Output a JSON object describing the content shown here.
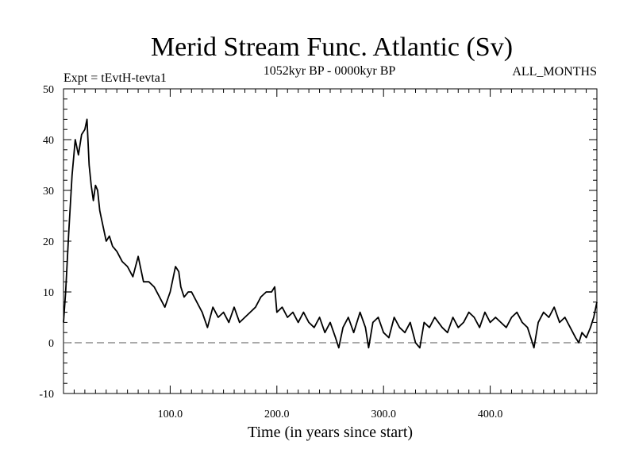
{
  "chart_data": {
    "type": "line",
    "title": "Merid Stream Func. Atlantic (Sv)",
    "subtitle_left": "Expt = tEvtH-tevta1",
    "subtitle_center": "1052kyr BP - 0000kyr BP",
    "subtitle_right": "ALL_MONTHS",
    "xlabel": "Time (in years since start)",
    "ylabel": "",
    "xlim": [
      0,
      500
    ],
    "ylim": [
      -10,
      50
    ],
    "x_ticks": [
      100,
      200,
      300,
      400
    ],
    "x_tick_labels": [
      "100.0",
      "200.0",
      "300.0",
      "400.0"
    ],
    "y_ticks": [
      -10,
      0,
      10,
      20,
      30,
      40,
      50
    ],
    "y_tick_labels": [
      "-10",
      "0",
      "10",
      "20",
      "30",
      "40",
      "50"
    ],
    "reference_line": {
      "y": 0,
      "style": "dashed"
    },
    "series": [
      {
        "name": "Merid Stream Func. Atlantic",
        "x": [
          0,
          2,
          5,
          8,
          11,
          14,
          17,
          20,
          22,
          24,
          26,
          28,
          30,
          32,
          34,
          36,
          38,
          40,
          43,
          46,
          50,
          55,
          60,
          65,
          70,
          75,
          80,
          85,
          90,
          95,
          100,
          105,
          108,
          110,
          113,
          117,
          120,
          125,
          130,
          135,
          140,
          145,
          150,
          155,
          160,
          165,
          170,
          175,
          180,
          185,
          190,
          195,
          198,
          200,
          205,
          210,
          215,
          220,
          225,
          230,
          235,
          240,
          245,
          250,
          255,
          258,
          262,
          267,
          272,
          278,
          283,
          286,
          290,
          295,
          300,
          305,
          310,
          315,
          320,
          325,
          330,
          334,
          338,
          343,
          348,
          355,
          360,
          365,
          370,
          375,
          380,
          385,
          390,
          395,
          400,
          405,
          410,
          415,
          420,
          425,
          430,
          435,
          438,
          441,
          445,
          450,
          455,
          460,
          465,
          470,
          475,
          480,
          483,
          486,
          490,
          494,
          497,
          500
        ],
        "values": [
          4,
          10,
          22,
          33,
          40,
          37,
          41,
          42,
          44,
          35,
          31,
          28,
          31,
          30,
          26,
          24,
          22,
          20,
          21,
          19,
          18,
          16,
          15,
          13,
          17,
          12,
          12,
          11,
          9,
          7,
          10,
          15,
          14,
          11,
          9,
          10,
          10,
          8,
          6,
          3,
          7,
          5,
          6,
          4,
          7,
          4,
          5,
          6,
          7,
          9,
          10,
          10,
          11,
          6,
          7,
          5,
          6,
          4,
          6,
          4,
          3,
          5,
          2,
          4,
          1,
          -1,
          3,
          5,
          2,
          6,
          3,
          -1,
          4,
          5,
          2,
          1,
          5,
          3,
          2,
          4,
          0,
          -1,
          4,
          3,
          5,
          3,
          2,
          5,
          3,
          4,
          6,
          5,
          3,
          6,
          4,
          5,
          4,
          3,
          5,
          6,
          4,
          3,
          1,
          -1,
          4,
          6,
          5,
          7,
          4,
          5,
          3,
          1,
          0,
          2,
          1,
          3,
          5,
          8
        ]
      }
    ]
  }
}
